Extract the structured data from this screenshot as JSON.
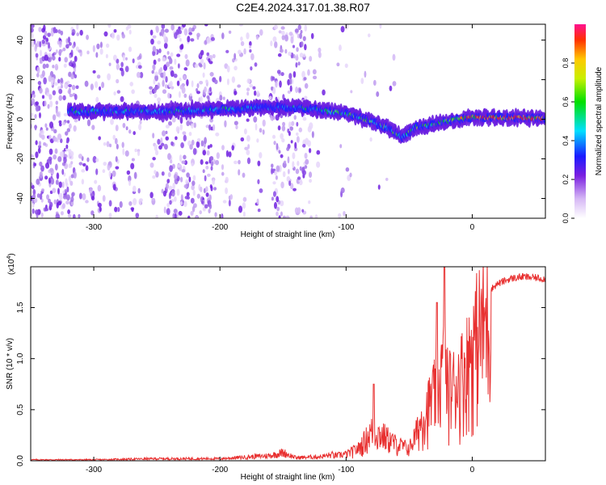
{
  "title": "C2E4.2024.317.01.38.R07",
  "chart_data": [
    {
      "type": "heatmap",
      "name": "spectrogram",
      "xlabel": "Height of straight line (km)",
      "ylabel": "Frequency (Hz)",
      "xlim": [
        -350,
        58
      ],
      "ylim": [
        -50,
        48
      ],
      "xticks": [
        -300,
        -200,
        -100,
        0
      ],
      "xtick_labels": [
        "-300",
        "-200",
        "-100",
        "0"
      ],
      "yticks": [
        -40,
        -20,
        0,
        20,
        40
      ],
      "ytick_labels": [
        "-40",
        "-20",
        "0",
        "20",
        "40"
      ],
      "ridge": {
        "x": [
          -320,
          -250,
          -200,
          -170,
          -140,
          -125,
          -100,
          -80,
          -65,
          -55,
          -45,
          -35,
          -20,
          -10,
          0,
          20,
          58
        ],
        "frequency": [
          4,
          4,
          5,
          6,
          6,
          5,
          3,
          -1,
          -5,
          -9,
          -4,
          -3,
          -1,
          0,
          1,
          1,
          0.5
        ]
      },
      "colorbar": {
        "label": "Normalized spectral amplitude",
        "range": [
          0.0,
          1.0
        ],
        "ticks": [
          0.0,
          0.2,
          0.4,
          0.6,
          0.8
        ],
        "tick_labels": [
          "0.0",
          "0.2",
          "0.4",
          "0.6",
          "0.8"
        ]
      }
    },
    {
      "type": "line",
      "name": "snr",
      "xlabel": "Height of straight line (km)",
      "ylabel": "SNR (10 * v/v)",
      "multiplier": "(x10",
      "multiplier_exp": "4",
      "multiplier_close": ")",
      "xlim": [
        -350,
        58
      ],
      "ylim": [
        0,
        1.9
      ],
      "xticks": [
        -300,
        -200,
        -100,
        0
      ],
      "xtick_labels": [
        "-300",
        "-200",
        "-100",
        "0"
      ],
      "yticks": [
        0.0,
        0.5,
        1.0,
        1.5
      ],
      "ytick_labels": [
        "0.0",
        "0.5",
        "1.0",
        "1.5"
      ],
      "color": "#e83030",
      "envelope": {
        "x": [
          -350,
          -300,
          -250,
          -200,
          -160,
          -150,
          -140,
          -120,
          -100,
          -90,
          -80,
          -70,
          -60,
          -50,
          -45,
          -40,
          -35,
          -30,
          -25,
          -22,
          -20,
          -15,
          -10,
          -5,
          0,
          5,
          10,
          20,
          30,
          40,
          50,
          58
        ],
        "y": [
          0.01,
          0.01,
          0.02,
          0.02,
          0.05,
          0.08,
          0.03,
          0.04,
          0.08,
          0.15,
          0.35,
          0.3,
          0.2,
          0.15,
          0.3,
          0.5,
          0.65,
          0.8,
          1.0,
          1.15,
          0.9,
          0.9,
          1.0,
          1.15,
          1.35,
          1.55,
          1.65,
          1.75,
          1.8,
          1.82,
          1.81,
          1.8
        ]
      },
      "peaks": [
        {
          "x": -78,
          "y": 0.75
        },
        {
          "x": -22,
          "y": 1.92
        },
        {
          "x": -28,
          "y": 1.55
        }
      ]
    }
  ]
}
